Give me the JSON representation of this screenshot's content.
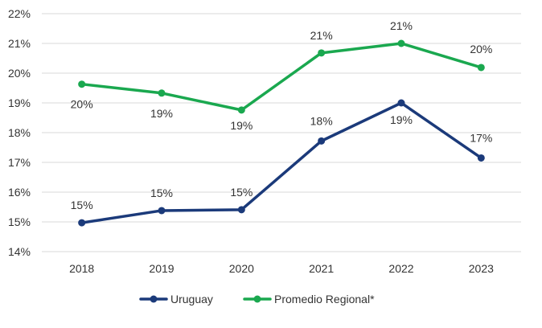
{
  "chart_data": {
    "type": "line",
    "categories": [
      "2018",
      "2019",
      "2020",
      "2021",
      "2022",
      "2023"
    ],
    "y_ticks": [
      "14%",
      "15%",
      "16%",
      "17%",
      "18%",
      "19%",
      "20%",
      "21%",
      "22%"
    ],
    "ylim": [
      14,
      22
    ],
    "grid": true,
    "legend_position": "bottom",
    "series": [
      {
        "name": "Uruguay",
        "color": "#1b3a7a",
        "values": [
          14.97,
          15.38,
          15.41,
          17.72,
          19.0,
          17.15
        ],
        "labels": [
          "15%",
          "15%",
          "15%",
          "18%",
          "19%",
          "17%"
        ]
      },
      {
        "name": "Promedio Regional*",
        "color": "#1aa84f",
        "values": [
          19.63,
          19.33,
          18.76,
          20.68,
          21.0,
          20.19
        ],
        "labels": [
          "20%",
          "19%",
          "19%",
          "21%",
          "21%",
          "20%"
        ]
      }
    ]
  }
}
